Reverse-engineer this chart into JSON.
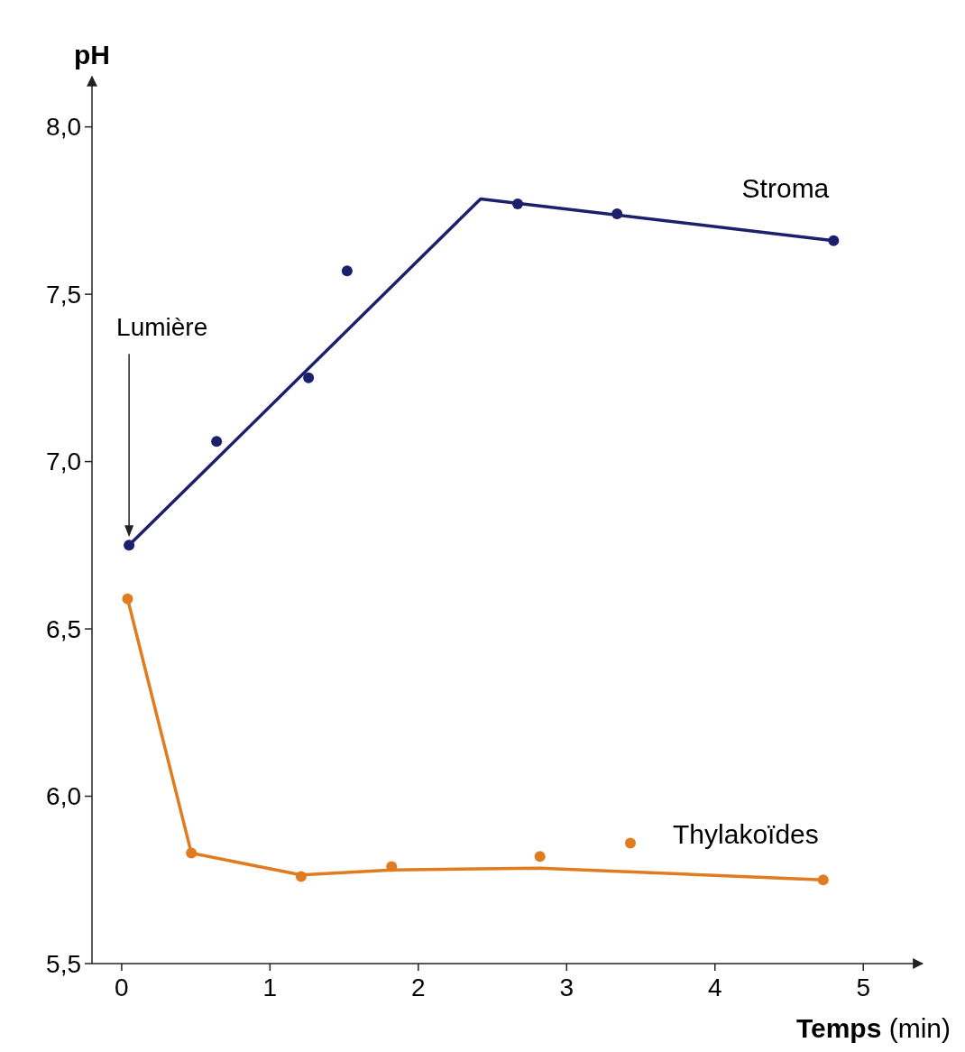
{
  "chart_data": {
    "type": "scatter",
    "xlabel": "Temps (min)",
    "ylabel": "pH",
    "xlim": [
      -0.2,
      5.4
    ],
    "ylim": [
      5.5,
      8.15
    ],
    "xticks": [
      0,
      1,
      2,
      3,
      4,
      5
    ],
    "yticks": [
      {
        "value": 5.5,
        "label": "5,5"
      },
      {
        "value": 6,
        "label": "6,0"
      },
      {
        "value": 6.5,
        "label": "6,5"
      },
      {
        "value": 7,
        "label": "7,0"
      },
      {
        "value": 7.5,
        "label": "7,5"
      },
      {
        "value": 8,
        "label": "8,0"
      }
    ],
    "grid": false,
    "marker": "circle",
    "series": [
      {
        "type": "line",
        "marker": "none",
        "color": "#1c1f6b",
        "x": [
          0.05,
          2.42,
          4.8
        ],
        "values": [
          6.75,
          7.785,
          7.66
        ]
      },
      {
        "type": "line",
        "marker": "none",
        "color": "#e07b20",
        "x": [
          0.04,
          0.47,
          1.21,
          1.82,
          2.82,
          4.73
        ],
        "values": [
          6.59,
          5.83,
          5.765,
          5.78,
          5.785,
          5.75
        ]
      },
      {
        "name": "Stroma",
        "color": "#1c1f6b",
        "x": [
          0.05,
          0.64,
          1.26,
          1.52,
          2.67,
          3.34,
          4.8
        ],
        "values": [
          6.75,
          7.06,
          7.25,
          7.57,
          7.77,
          7.74,
          7.66
        ]
      },
      {
        "name": "Thylakoïdes",
        "color": "#e07b20",
        "x": [
          0.04,
          0.47,
          1.21,
          1.82,
          2.82,
          3.43,
          4.73
        ],
        "values": [
          6.59,
          5.83,
          5.76,
          5.79,
          5.82,
          5.86,
          5.75
        ]
      }
    ],
    "annotations": [
      "Lumière"
    ]
  }
}
